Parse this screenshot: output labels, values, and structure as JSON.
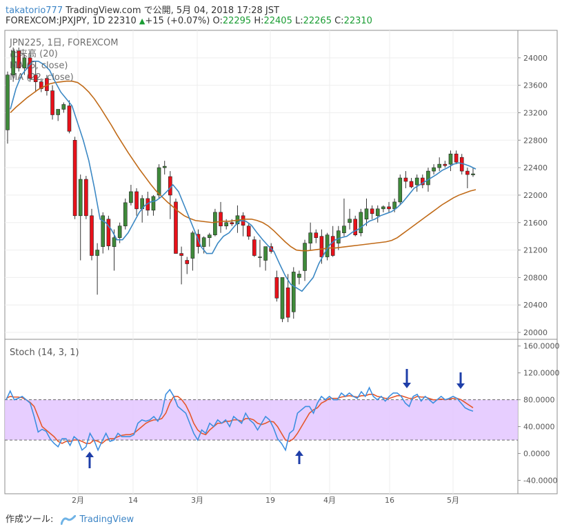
{
  "header": {
    "user": "takatorio777",
    "published": "TradingView.com で公開, 5月 04, 2018 17:28 JST",
    "symbol": "FOREXCOM:JPXJPY, 1D",
    "last": "22310",
    "change": "+15 (+0.07%)",
    "o_label": "O:",
    "o": "22295",
    "h_label": "H:",
    "h": "22405",
    "l_label": "L:",
    "l": "22265",
    "c_label": "C:",
    "c": "22310"
  },
  "legend": {
    "title": "JPN225, 1日, FOREXCOM",
    "volume": "出来高 (20)",
    "ma5": "MA (5, close)",
    "ma22": "MA (22, close)"
  },
  "stoch_label": "Stoch (14, 3, 1)",
  "footer": {
    "tool": "作成ツール:",
    "brand": "TradingView"
  },
  "colors": {
    "up": "#3f8a3a",
    "down": "#e8111a",
    "ma5": "#3b88c4",
    "ma22": "#c06a17",
    "k": "#3d8fe0",
    "d": "#e5562a",
    "band": "#e3c6ff",
    "arrow": "#1e3ea8"
  },
  "chart_data": [
    {
      "type": "candlestick",
      "ylim": [
        19900,
        24400
      ],
      "yticks": [
        "24000",
        "23600",
        "23200",
        "22800",
        "22400",
        "22000",
        "21600",
        "21200",
        "20800",
        "20400",
        "20000"
      ],
      "xticks": [
        "2月",
        "14",
        "3月",
        "19",
        "4月",
        "16",
        "5月"
      ],
      "candles": [
        {
          "o": 22950,
          "h": 23800,
          "l": 22750,
          "c": 23750
        },
        {
          "o": 23750,
          "h": 24150,
          "l": 23650,
          "c": 24100
        },
        {
          "o": 24100,
          "h": 24150,
          "l": 23800,
          "c": 23850
        },
        {
          "o": 23850,
          "h": 24050,
          "l": 23750,
          "c": 24000
        },
        {
          "o": 24000,
          "h": 24100,
          "l": 23650,
          "c": 23700
        },
        {
          "o": 23750,
          "h": 23950,
          "l": 23500,
          "c": 23650
        },
        {
          "o": 23650,
          "h": 23700,
          "l": 23500,
          "c": 23550
        },
        {
          "o": 23700,
          "h": 23750,
          "l": 23450,
          "c": 23520
        },
        {
          "o": 23520,
          "h": 23600,
          "l": 23100,
          "c": 23170
        },
        {
          "o": 23170,
          "h": 23250,
          "l": 23080,
          "c": 23250
        },
        {
          "o": 23250,
          "h": 23350,
          "l": 23200,
          "c": 23320
        },
        {
          "o": 23300,
          "h": 23380,
          "l": 22900,
          "c": 22930
        },
        {
          "o": 22800,
          "h": 22850,
          "l": 21650,
          "c": 21700
        },
        {
          "o": 21700,
          "h": 22300,
          "l": 21050,
          "c": 22230
        },
        {
          "o": 22230,
          "h": 22280,
          "l": 21650,
          "c": 21700
        },
        {
          "o": 21700,
          "h": 21800,
          "l": 21050,
          "c": 21120
        },
        {
          "o": 21120,
          "h": 21300,
          "l": 20550,
          "c": 21200
        },
        {
          "o": 21250,
          "h": 21750,
          "l": 21150,
          "c": 21700
        },
        {
          "o": 21650,
          "h": 21700,
          "l": 21200,
          "c": 21260
        },
        {
          "o": 21250,
          "h": 21500,
          "l": 20900,
          "c": 21380
        },
        {
          "o": 21380,
          "h": 21600,
          "l": 21300,
          "c": 21550
        },
        {
          "o": 21550,
          "h": 21950,
          "l": 21500,
          "c": 21890
        },
        {
          "o": 21890,
          "h": 22150,
          "l": 21850,
          "c": 22050
        },
        {
          "o": 22050,
          "h": 22100,
          "l": 21700,
          "c": 21800
        },
        {
          "o": 21800,
          "h": 22000,
          "l": 21600,
          "c": 21950
        },
        {
          "o": 21950,
          "h": 22050,
          "l": 21700,
          "c": 21780
        },
        {
          "o": 21780,
          "h": 22000,
          "l": 21700,
          "c": 21980
        },
        {
          "o": 22000,
          "h": 22450,
          "l": 21950,
          "c": 22400
        },
        {
          "o": 22400,
          "h": 22500,
          "l": 22300,
          "c": 22420
        },
        {
          "o": 22270,
          "h": 22350,
          "l": 21650,
          "c": 22000
        },
        {
          "o": 21900,
          "h": 21950,
          "l": 21150,
          "c": 21150
        },
        {
          "o": 21150,
          "h": 21250,
          "l": 20700,
          "c": 21120
        },
        {
          "o": 21050,
          "h": 21100,
          "l": 20850,
          "c": 21000
        },
        {
          "o": 21080,
          "h": 21480,
          "l": 20900,
          "c": 21450
        },
        {
          "o": 21430,
          "h": 21500,
          "l": 21150,
          "c": 21250
        },
        {
          "o": 21250,
          "h": 21400,
          "l": 21150,
          "c": 21380
        },
        {
          "o": 21380,
          "h": 21450,
          "l": 21250,
          "c": 21420
        },
        {
          "o": 21420,
          "h": 21800,
          "l": 21400,
          "c": 21750
        },
        {
          "o": 21750,
          "h": 21900,
          "l": 21450,
          "c": 21550
        },
        {
          "o": 21550,
          "h": 21650,
          "l": 21500,
          "c": 21600
        },
        {
          "o": 21600,
          "h": 21650,
          "l": 21550,
          "c": 21580
        },
        {
          "o": 21580,
          "h": 21850,
          "l": 21450,
          "c": 21700
        },
        {
          "o": 21700,
          "h": 21750,
          "l": 21400,
          "c": 21560
        },
        {
          "o": 21550,
          "h": 21600,
          "l": 21350,
          "c": 21400
        },
        {
          "o": 21350,
          "h": 21400,
          "l": 21100,
          "c": 21120
        },
        {
          "o": 21100,
          "h": 21350,
          "l": 20950,
          "c": 21100
        },
        {
          "o": 21050,
          "h": 21250,
          "l": 20900,
          "c": 21250
        },
        {
          "o": 21250,
          "h": 21300,
          "l": 21150,
          "c": 21180
        },
        {
          "o": 20800,
          "h": 20900,
          "l": 20450,
          "c": 20500
        },
        {
          "o": 20200,
          "h": 20800,
          "l": 20150,
          "c": 20800
        },
        {
          "o": 20650,
          "h": 20850,
          "l": 20150,
          "c": 20220
        },
        {
          "o": 20300,
          "h": 20950,
          "l": 20200,
          "c": 20880
        },
        {
          "o": 20800,
          "h": 20900,
          "l": 20700,
          "c": 20850
        },
        {
          "o": 20900,
          "h": 21350,
          "l": 20750,
          "c": 21300
        },
        {
          "o": 21300,
          "h": 21600,
          "l": 21200,
          "c": 21450
        },
        {
          "o": 21450,
          "h": 21500,
          "l": 21300,
          "c": 21380
        },
        {
          "o": 21400,
          "h": 21500,
          "l": 21000,
          "c": 21100
        },
        {
          "o": 21100,
          "h": 21450,
          "l": 21050,
          "c": 21420
        },
        {
          "o": 21400,
          "h": 21550,
          "l": 21100,
          "c": 21120
        },
        {
          "o": 21300,
          "h": 21550,
          "l": 21200,
          "c": 21480
        },
        {
          "o": 21450,
          "h": 21950,
          "l": 21400,
          "c": 21550
        },
        {
          "o": 21600,
          "h": 21800,
          "l": 21500,
          "c": 21650
        },
        {
          "o": 21650,
          "h": 21700,
          "l": 21400,
          "c": 21420
        },
        {
          "o": 21450,
          "h": 21800,
          "l": 21400,
          "c": 21750
        },
        {
          "o": 21650,
          "h": 21950,
          "l": 21550,
          "c": 21800
        },
        {
          "o": 21800,
          "h": 21850,
          "l": 21650,
          "c": 21730
        },
        {
          "o": 21700,
          "h": 21850,
          "l": 21600,
          "c": 21800
        },
        {
          "o": 21800,
          "h": 21850,
          "l": 21750,
          "c": 21830
        },
        {
          "o": 21830,
          "h": 21900,
          "l": 21750,
          "c": 21800
        },
        {
          "o": 21800,
          "h": 21950,
          "l": 21750,
          "c": 21900
        },
        {
          "o": 21900,
          "h": 22300,
          "l": 21850,
          "c": 22250
        },
        {
          "o": 22250,
          "h": 22350,
          "l": 22100,
          "c": 22200
        },
        {
          "o": 22200,
          "h": 22250,
          "l": 22100,
          "c": 22120
        },
        {
          "o": 22150,
          "h": 22300,
          "l": 22050,
          "c": 22250
        },
        {
          "o": 22250,
          "h": 22300,
          "l": 22100,
          "c": 22150
        },
        {
          "o": 22150,
          "h": 22400,
          "l": 22050,
          "c": 22350
        },
        {
          "o": 22350,
          "h": 22450,
          "l": 22300,
          "c": 22400
        },
        {
          "o": 22400,
          "h": 22550,
          "l": 22350,
          "c": 22450
        },
        {
          "o": 22450,
          "h": 22500,
          "l": 22400,
          "c": 22430
        },
        {
          "o": 22450,
          "h": 22650,
          "l": 22350,
          "c": 22600
        },
        {
          "o": 22600,
          "h": 22650,
          "l": 22450,
          "c": 22480
        },
        {
          "o": 22550,
          "h": 22600,
          "l": 22300,
          "c": 22350
        },
        {
          "o": 22350,
          "h": 22400,
          "l": 22100,
          "c": 22300
        },
        {
          "o": 22295,
          "h": 22405,
          "l": 22265,
          "c": 22310
        }
      ],
      "ma5": [
        23250,
        23550,
        23750,
        23850,
        23950,
        23950,
        23900,
        23820,
        23650,
        23500,
        23400,
        23300,
        23050,
        22800,
        22500,
        22100,
        21650,
        21600,
        21500,
        21350,
        21350,
        21450,
        21600,
        21750,
        21850,
        21900,
        21920,
        21980,
        22060,
        22150,
        22050,
        21850,
        21650,
        21450,
        21250,
        21150,
        21150,
        21300,
        21400,
        21450,
        21550,
        21630,
        21620,
        21560,
        21450,
        21350,
        21260,
        21180,
        21000,
        20830,
        20700,
        20650,
        20600,
        20700,
        20800,
        21000,
        21150,
        21280,
        21350,
        21380,
        21400,
        21460,
        21500,
        21560,
        21620,
        21650,
        21700,
        21730,
        21760,
        21820,
        21900,
        22000,
        22100,
        22150,
        22200,
        22250,
        22300,
        22360,
        22400,
        22450,
        22470,
        22450,
        22420,
        22380
      ],
      "ma22": [
        23200,
        23280,
        23350,
        23420,
        23480,
        23540,
        23580,
        23620,
        23640,
        23650,
        23660,
        23660,
        23640,
        23580,
        23500,
        23400,
        23280,
        23150,
        23020,
        22880,
        22750,
        22620,
        22500,
        22380,
        22270,
        22160,
        22060,
        21980,
        21900,
        21830,
        21760,
        21700,
        21660,
        21630,
        21620,
        21610,
        21600,
        21610,
        21620,
        21620,
        21630,
        21640,
        21650,
        21650,
        21630,
        21600,
        21550,
        21480,
        21400,
        21320,
        21250,
        21200,
        21190,
        21190,
        21200,
        21210,
        21220,
        21230,
        21230,
        21240,
        21250,
        21260,
        21270,
        21280,
        21290,
        21300,
        21310,
        21320,
        21340,
        21380,
        21440,
        21500,
        21560,
        21620,
        21680,
        21740,
        21800,
        21860,
        21910,
        21960,
        22000,
        22030,
        22060,
        22080
      ]
    },
    {
      "type": "line",
      "ylim": [
        -60,
        170
      ],
      "yticks": [
        "160.0000",
        "120.0000",
        "80.0000",
        "40.0000",
        "0.0000",
        "-40.0000"
      ],
      "bands": [
        20,
        80
      ],
      "series": [
        {
          "values": [
            80,
            93,
            80,
            82,
            85,
            80,
            75,
            55,
            32,
            36,
            33,
            22,
            15,
            10,
            22,
            22,
            12,
            25,
            20,
            5,
            10,
            30,
            20,
            5,
            18,
            30,
            18,
            20,
            30,
            25,
            25,
            25,
            28,
            45,
            50,
            48,
            50,
            55,
            48,
            60,
            88,
            95,
            85,
            70,
            65,
            60,
            45,
            30,
            20,
            35,
            30,
            45,
            40,
            50,
            45,
            50,
            40,
            55,
            50,
            45,
            60,
            50,
            45,
            35,
            45,
            55,
            50,
            38,
            22,
            15,
            5,
            30,
            35,
            60,
            65,
            70,
            70,
            60,
            75,
            85,
            80,
            85,
            80,
            80,
            90,
            85,
            90,
            85,
            82,
            92,
            85,
            98,
            85,
            80,
            85,
            78,
            85,
            90,
            90,
            85,
            75,
            70,
            85,
            88,
            78,
            85,
            80,
            75,
            80,
            85,
            80,
            82,
            85,
            82,
            75,
            68,
            65,
            63
          ]
        },
        {
          "values": [
            82,
            85,
            84,
            84,
            83,
            80,
            76,
            70,
            55,
            40,
            35,
            30,
            25,
            18,
            15,
            18,
            18,
            20,
            20,
            18,
            15,
            15,
            20,
            18,
            15,
            20,
            22,
            22,
            25,
            27,
            28,
            28,
            30,
            35,
            40,
            45,
            48,
            50,
            50,
            52,
            60,
            75,
            85,
            85,
            80,
            72,
            60,
            45,
            35,
            30,
            28,
            35,
            40,
            45,
            45,
            48,
            48,
            50,
            50,
            48,
            52,
            52,
            50,
            45,
            43,
            45,
            48,
            47,
            40,
            30,
            20,
            18,
            22,
            30,
            40,
            50,
            60,
            65,
            68,
            75,
            78,
            82,
            82,
            82,
            84,
            85,
            86,
            85,
            84,
            86,
            86,
            88,
            88,
            85,
            84,
            82,
            82,
            84,
            86,
            86,
            84,
            82,
            82,
            85,
            84,
            84,
            82,
            80,
            80,
            81,
            80,
            81,
            82,
            82,
            80,
            76,
            72,
            68
          ]
        }
      ]
    }
  ]
}
